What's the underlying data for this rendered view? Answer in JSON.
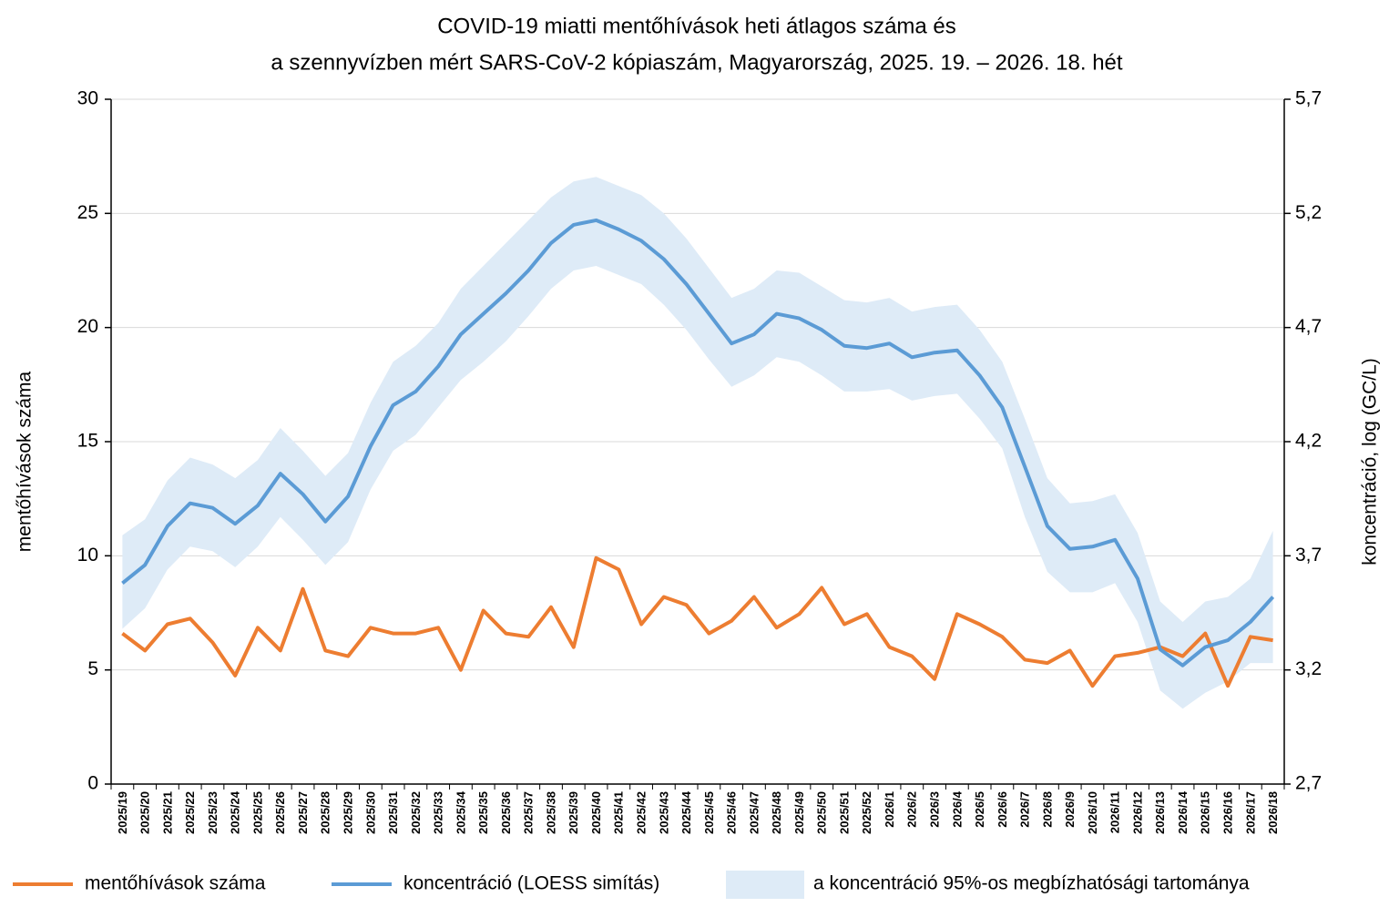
{
  "chart_data": {
    "type": "line",
    "title": [
      "COVID-19 miatti mentőhívások heti átlagos száma és",
      "a szennyvízben mért SARS-CoV-2 kópiaszám, Magyarország, 2025. 19. – 2026. 18. hét"
    ],
    "ylabel": "mentőhívások száma",
    "y2label": "koncentráció, log (GC/L)",
    "categories": [
      "2025/19",
      "2025/20",
      "2025/21",
      "2025/22",
      "2025/23",
      "2025/24",
      "2025/25",
      "2025/26",
      "2025/27",
      "2025/28",
      "2025/29",
      "2025/30",
      "2025/31",
      "2025/32",
      "2025/33",
      "2025/34",
      "2025/35",
      "2025/36",
      "2025/37",
      "2025/38",
      "2025/39",
      "2025/40",
      "2025/41",
      "2025/42",
      "2025/43",
      "2025/44",
      "2025/45",
      "2025/46",
      "2025/47",
      "2025/48",
      "2025/49",
      "2025/50",
      "2025/51",
      "2025/52",
      "2026/1",
      "2026/2",
      "2026/3",
      "2026/4",
      "2026/5",
      "2026/6",
      "2026/7",
      "2026/8",
      "2026/9",
      "2026/10",
      "2026/11",
      "2026/12",
      "2026/13",
      "2026/14",
      "2026/15",
      "2026/16",
      "2026/17",
      "2026/18"
    ],
    "ylim": [
      0,
      30
    ],
    "yticks": [
      0,
      5,
      10,
      15,
      20,
      25,
      30
    ],
    "y2lim": [
      2.7,
      5.7
    ],
    "y2ticks": [
      {
        "value": 2.7,
        "label": "2,7"
      },
      {
        "value": 3.2,
        "label": "3,2"
      },
      {
        "value": 3.7,
        "label": "3,7"
      },
      {
        "value": 4.2,
        "label": "4,2"
      },
      {
        "value": 4.7,
        "label": "4,7"
      },
      {
        "value": 5.2,
        "label": "5,2"
      },
      {
        "value": 5.7,
        "label": "5,7"
      }
    ],
    "grid": true,
    "legend": "bottom",
    "series": [
      {
        "name": "mentőhívások száma",
        "style": "line",
        "color": "#ed7d31",
        "axis": "y",
        "values": [
          6.6,
          5.85,
          7.0,
          7.25,
          6.2,
          4.75,
          6.85,
          5.85,
          8.55,
          5.85,
          5.6,
          6.85,
          6.6,
          6.6,
          6.85,
          5.0,
          7.6,
          6.6,
          6.45,
          7.75,
          6.0,
          9.9,
          9.4,
          7.0,
          8.2,
          7.85,
          6.6,
          7.15,
          8.2,
          6.85,
          7.45,
          8.6,
          7.0,
          7.45,
          6.0,
          5.6,
          4.6,
          7.45,
          7.0,
          6.45,
          5.45,
          5.3,
          5.85,
          4.3,
          5.6,
          5.75,
          6.0,
          5.6,
          6.6,
          4.3,
          6.45,
          6.3
        ]
      },
      {
        "name": "koncentráció (LOESS simítás)",
        "style": "line",
        "color": "#5b9bd5",
        "axis": "y2",
        "values": [
          3.58,
          3.66,
          3.83,
          3.93,
          3.91,
          3.84,
          3.92,
          4.06,
          3.97,
          3.85,
          3.96,
          4.18,
          4.36,
          4.42,
          4.53,
          4.67,
          4.76,
          4.85,
          4.95,
          5.07,
          5.15,
          5.17,
          5.13,
          5.08,
          5.0,
          4.89,
          4.76,
          4.63,
          4.67,
          4.76,
          4.74,
          4.69,
          4.62,
          4.61,
          4.63,
          4.57,
          4.59,
          4.6,
          4.49,
          4.35,
          4.09,
          3.83,
          3.73,
          3.74,
          3.77,
          3.6,
          3.29,
          3.22,
          3.3,
          3.33,
          3.41,
          3.52
        ]
      },
      {
        "name": "a koncentráció 95%-os megbízhatósági tartománya",
        "style": "band",
        "color": "#deebf7",
        "axis": "y2",
        "upper": [
          3.79,
          3.86,
          4.03,
          4.13,
          4.1,
          4.04,
          4.12,
          4.26,
          4.16,
          4.05,
          4.15,
          4.37,
          4.55,
          4.62,
          4.72,
          4.87,
          4.97,
          5.07,
          5.17,
          5.27,
          5.34,
          5.36,
          5.32,
          5.28,
          5.2,
          5.09,
          4.96,
          4.83,
          4.87,
          4.95,
          4.94,
          4.88,
          4.82,
          4.81,
          4.83,
          4.77,
          4.79,
          4.8,
          4.69,
          4.55,
          4.3,
          4.04,
          3.93,
          3.94,
          3.97,
          3.8,
          3.5,
          3.41,
          3.5,
          3.52,
          3.6,
          3.81
        ],
        "lower": [
          3.38,
          3.47,
          3.64,
          3.74,
          3.72,
          3.65,
          3.74,
          3.87,
          3.77,
          3.66,
          3.76,
          3.99,
          4.16,
          4.23,
          4.35,
          4.47,
          4.55,
          4.64,
          4.75,
          4.87,
          4.95,
          4.97,
          4.93,
          4.89,
          4.8,
          4.69,
          4.56,
          4.44,
          4.49,
          4.57,
          4.55,
          4.49,
          4.42,
          4.42,
          4.43,
          4.38,
          4.4,
          4.41,
          4.3,
          4.17,
          3.87,
          3.63,
          3.54,
          3.54,
          3.58,
          3.41,
          3.11,
          3.03,
          3.1,
          3.15,
          3.23,
          3.23
        ]
      }
    ]
  }
}
